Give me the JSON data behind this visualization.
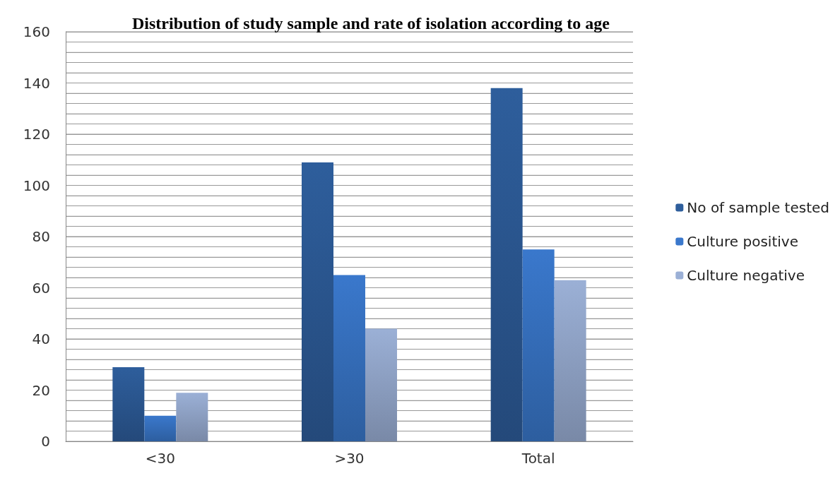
{
  "chart_data": {
    "type": "bar",
    "title": "Distribution of study sample and rate of isolation according to age",
    "categories": [
      "<30",
      ">30",
      "Total"
    ],
    "series": [
      {
        "name": "No of sample tested",
        "color": "#2e5e9c",
        "values": [
          29,
          109,
          138
        ]
      },
      {
        "name": "Culture positive",
        "color": "#3a78cc",
        "values": [
          10,
          65,
          75
        ]
      },
      {
        "name": "Culture negative",
        "color": "#9bb0d6",
        "values": [
          19,
          44,
          63
        ]
      }
    ],
    "ylim": [
      0,
      160
    ],
    "yticks": [
      0,
      {
        "value": 4,
        "label": null
      },
      {
        "value": 8,
        "label": null
      },
      {
        "value": 12,
        "label": null
      },
      {
        "value": 16,
        "label": null
      },
      20,
      {
        "value": 24,
        "label": null
      },
      {
        "value": 28,
        "label": null
      },
      {
        "value": 32,
        "label": null
      },
      {
        "value": 36,
        "label": null
      },
      40,
      {
        "value": 44,
        "label": null
      },
      {
        "value": 48,
        "label": null
      },
      {
        "value": 52,
        "label": null
      },
      {
        "value": 56,
        "label": null
      },
      60,
      {
        "value": 64,
        "label": null
      },
      {
        "value": 68,
        "label": null
      },
      {
        "value": 72,
        "label": null
      },
      {
        "value": 76,
        "label": null
      },
      80,
      {
        "value": 84,
        "label": null
      },
      {
        "value": 88,
        "label": null
      },
      {
        "value": 92,
        "label": null
      },
      {
        "value": 96,
        "label": null
      },
      100,
      {
        "value": 104,
        "label": null
      },
      {
        "value": 108,
        "label": null
      },
      {
        "value": 112,
        "label": null
      },
      {
        "value": 116,
        "label": null
      },
      120,
      {
        "value": 124,
        "label": null
      },
      {
        "value": 128,
        "label": null
      },
      {
        "value": 132,
        "label": null
      },
      {
        "value": 136,
        "label": null
      },
      140,
      {
        "value": 144,
        "label": null
      },
      {
        "value": 148,
        "label": null
      },
      {
        "value": 152,
        "label": null
      },
      {
        "value": 156,
        "label": null
      },
      160
    ],
    "grid": true,
    "legend": "right"
  }
}
